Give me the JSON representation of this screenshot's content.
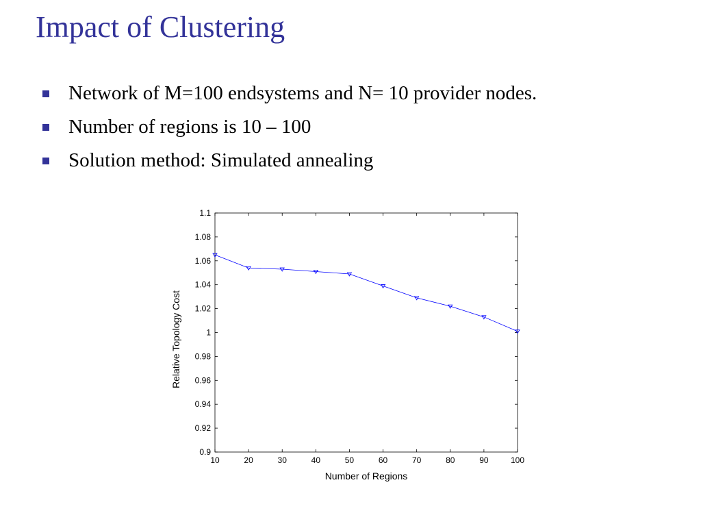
{
  "slide": {
    "title": "Impact of Clustering",
    "bullets": [
      "Network of M=100 endsystems and N= 10 provider nodes.",
      "Number of regions is 10 – 100",
      "Solution method: Simulated annealing"
    ]
  },
  "colors": {
    "title": "#333399",
    "bullet": "#333399",
    "series": "#0000ff"
  },
  "chart_data": {
    "type": "line",
    "xlabel": "Number of Regions",
    "ylabel": "Relative Topology Cost",
    "x": [
      10,
      20,
      30,
      40,
      50,
      60,
      70,
      80,
      90,
      100
    ],
    "series": [
      {
        "values": [
          1.065,
          1.054,
          1.053,
          1.051,
          1.049,
          1.039,
          1.029,
          1.022,
          1.013,
          1.001
        ],
        "marker": "triangle-down"
      }
    ],
    "xlim": [
      10,
      100
    ],
    "ylim": [
      0.9,
      1.1
    ],
    "xticks": [
      "10",
      "20",
      "30",
      "40",
      "50",
      "60",
      "70",
      "80",
      "90",
      "100"
    ],
    "yticks": [
      "0.9",
      "0.92",
      "0.94",
      "0.96",
      "0.98",
      "1",
      "1.02",
      "1.04",
      "1.06",
      "1.08",
      "1.1"
    ],
    "grid": false
  }
}
